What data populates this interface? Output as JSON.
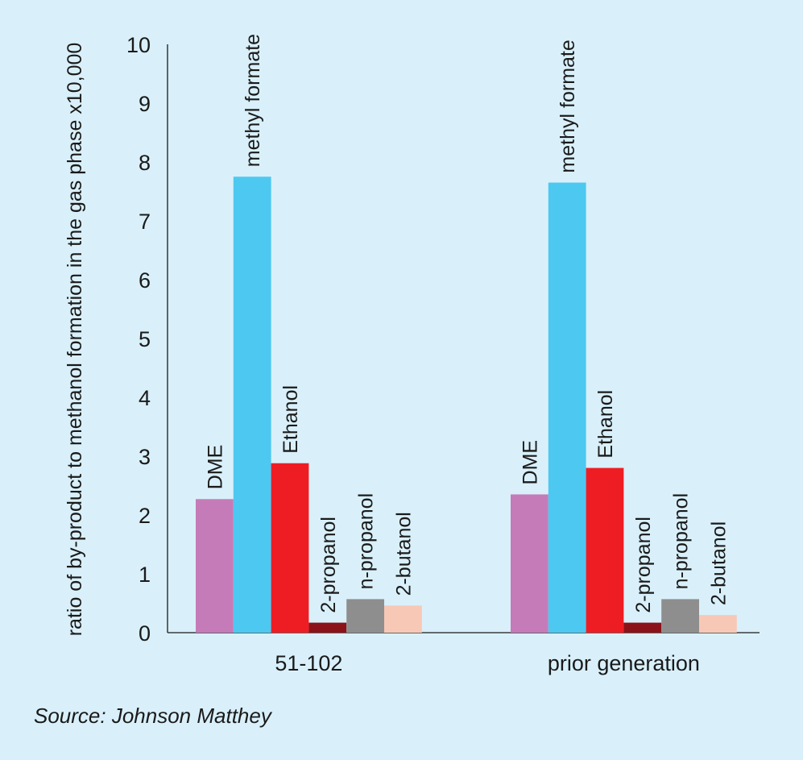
{
  "chart_data": {
    "type": "bar",
    "title": "",
    "xlabel": "",
    "ylabel": "ratio of by-product to methanol formation in the gas phase x10,000",
    "ylim": [
      0,
      10
    ],
    "yticks": [
      0,
      1,
      2,
      3,
      4,
      5,
      6,
      7,
      8,
      9,
      10
    ],
    "grid": false,
    "legend": "none (series labelled directly above bars)",
    "categories": [
      "51-102",
      "prior generation"
    ],
    "series": [
      {
        "name": "DME",
        "color": "#c57bb8",
        "values": [
          2.27,
          2.35
        ]
      },
      {
        "name": "methyl formate",
        "color": "#4dc8f1",
        "values": [
          7.75,
          7.65
        ]
      },
      {
        "name": "Ethanol",
        "color": "#ee1d23",
        "values": [
          2.88,
          2.8
        ]
      },
      {
        "name": "2-propanol",
        "color": "#8b1218",
        "values": [
          0.17,
          0.17
        ]
      },
      {
        "name": "n-propanol",
        "color": "#8f8e8e",
        "values": [
          0.57,
          0.57
        ]
      },
      {
        "name": "2-butanol",
        "color": "#f8c8b6",
        "values": [
          0.46,
          0.3
        ]
      }
    ]
  },
  "source": "Source: Johnson Matthey"
}
